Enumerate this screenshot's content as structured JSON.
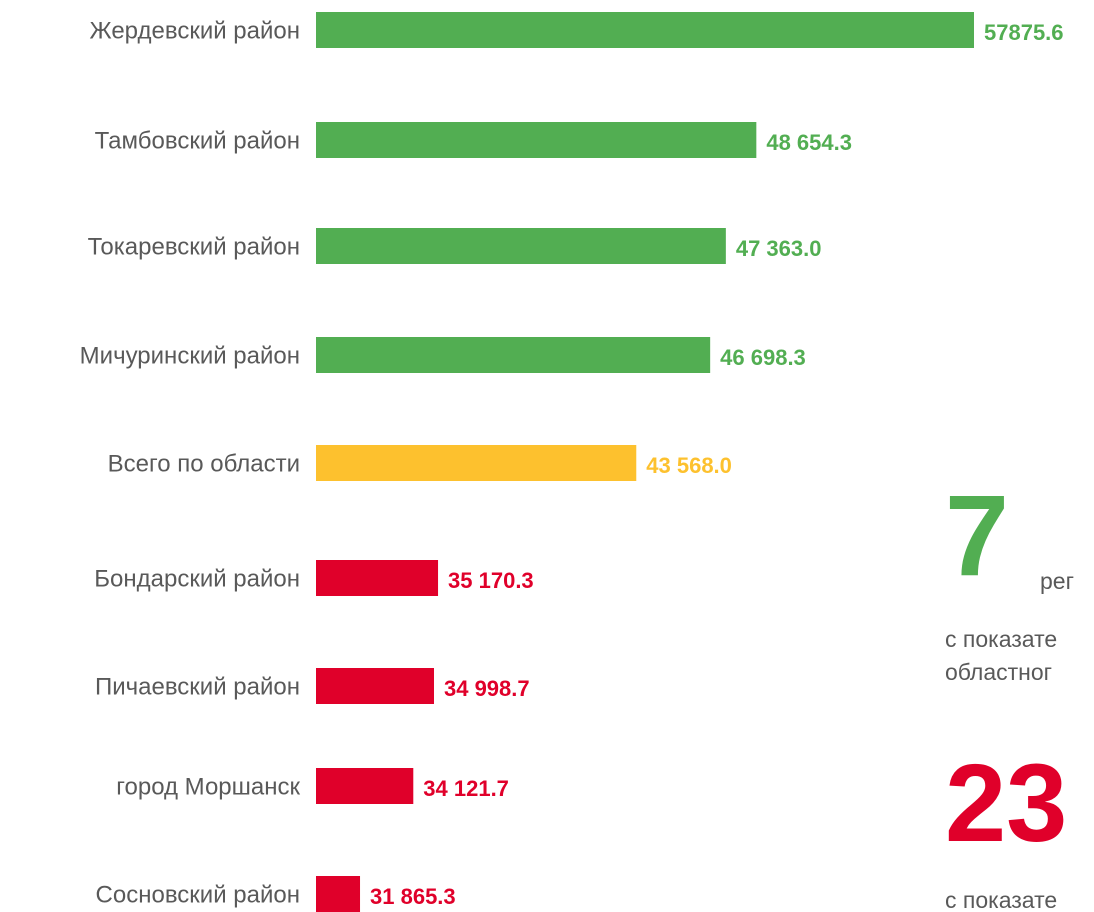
{
  "chart_data": {
    "type": "bar",
    "orientation": "horizontal",
    "categories": [
      "Жердевский район",
      "Тамбовский район",
      "Токаревский район",
      "Мичуринский район",
      "Всего по области",
      "Бондарский район",
      "Пичаевский район",
      "город Моршанск",
      "Сосновский район"
    ],
    "values": [
      57875.6,
      48654.3,
      47363.0,
      46698.3,
      43568.0,
      35170.3,
      34998.7,
      34121.7,
      31865.3
    ],
    "value_labels": [
      "57875.6",
      "48 654.3",
      "47 363.0",
      "46 698.3",
      "43 568.0",
      "35 170.3",
      "34 998.7",
      "34 121.7",
      "31 865.3"
    ],
    "colors": [
      "#52ae52",
      "#52ae52",
      "#52ae52",
      "#52ae52",
      "#fdc12e",
      "#e0002a",
      "#e0002a",
      "#e0002a",
      "#e0002a"
    ],
    "xlim": [
      30000,
      57875.6
    ],
    "annotations": [
      {
        "text": "7",
        "color": "#52ae52"
      },
      {
        "text": "рег"
      },
      {
        "text": "с показате"
      },
      {
        "text": "областног"
      },
      {
        "text": "23",
        "color": "#e0002a"
      },
      {
        "text": "с показате"
      }
    ]
  }
}
